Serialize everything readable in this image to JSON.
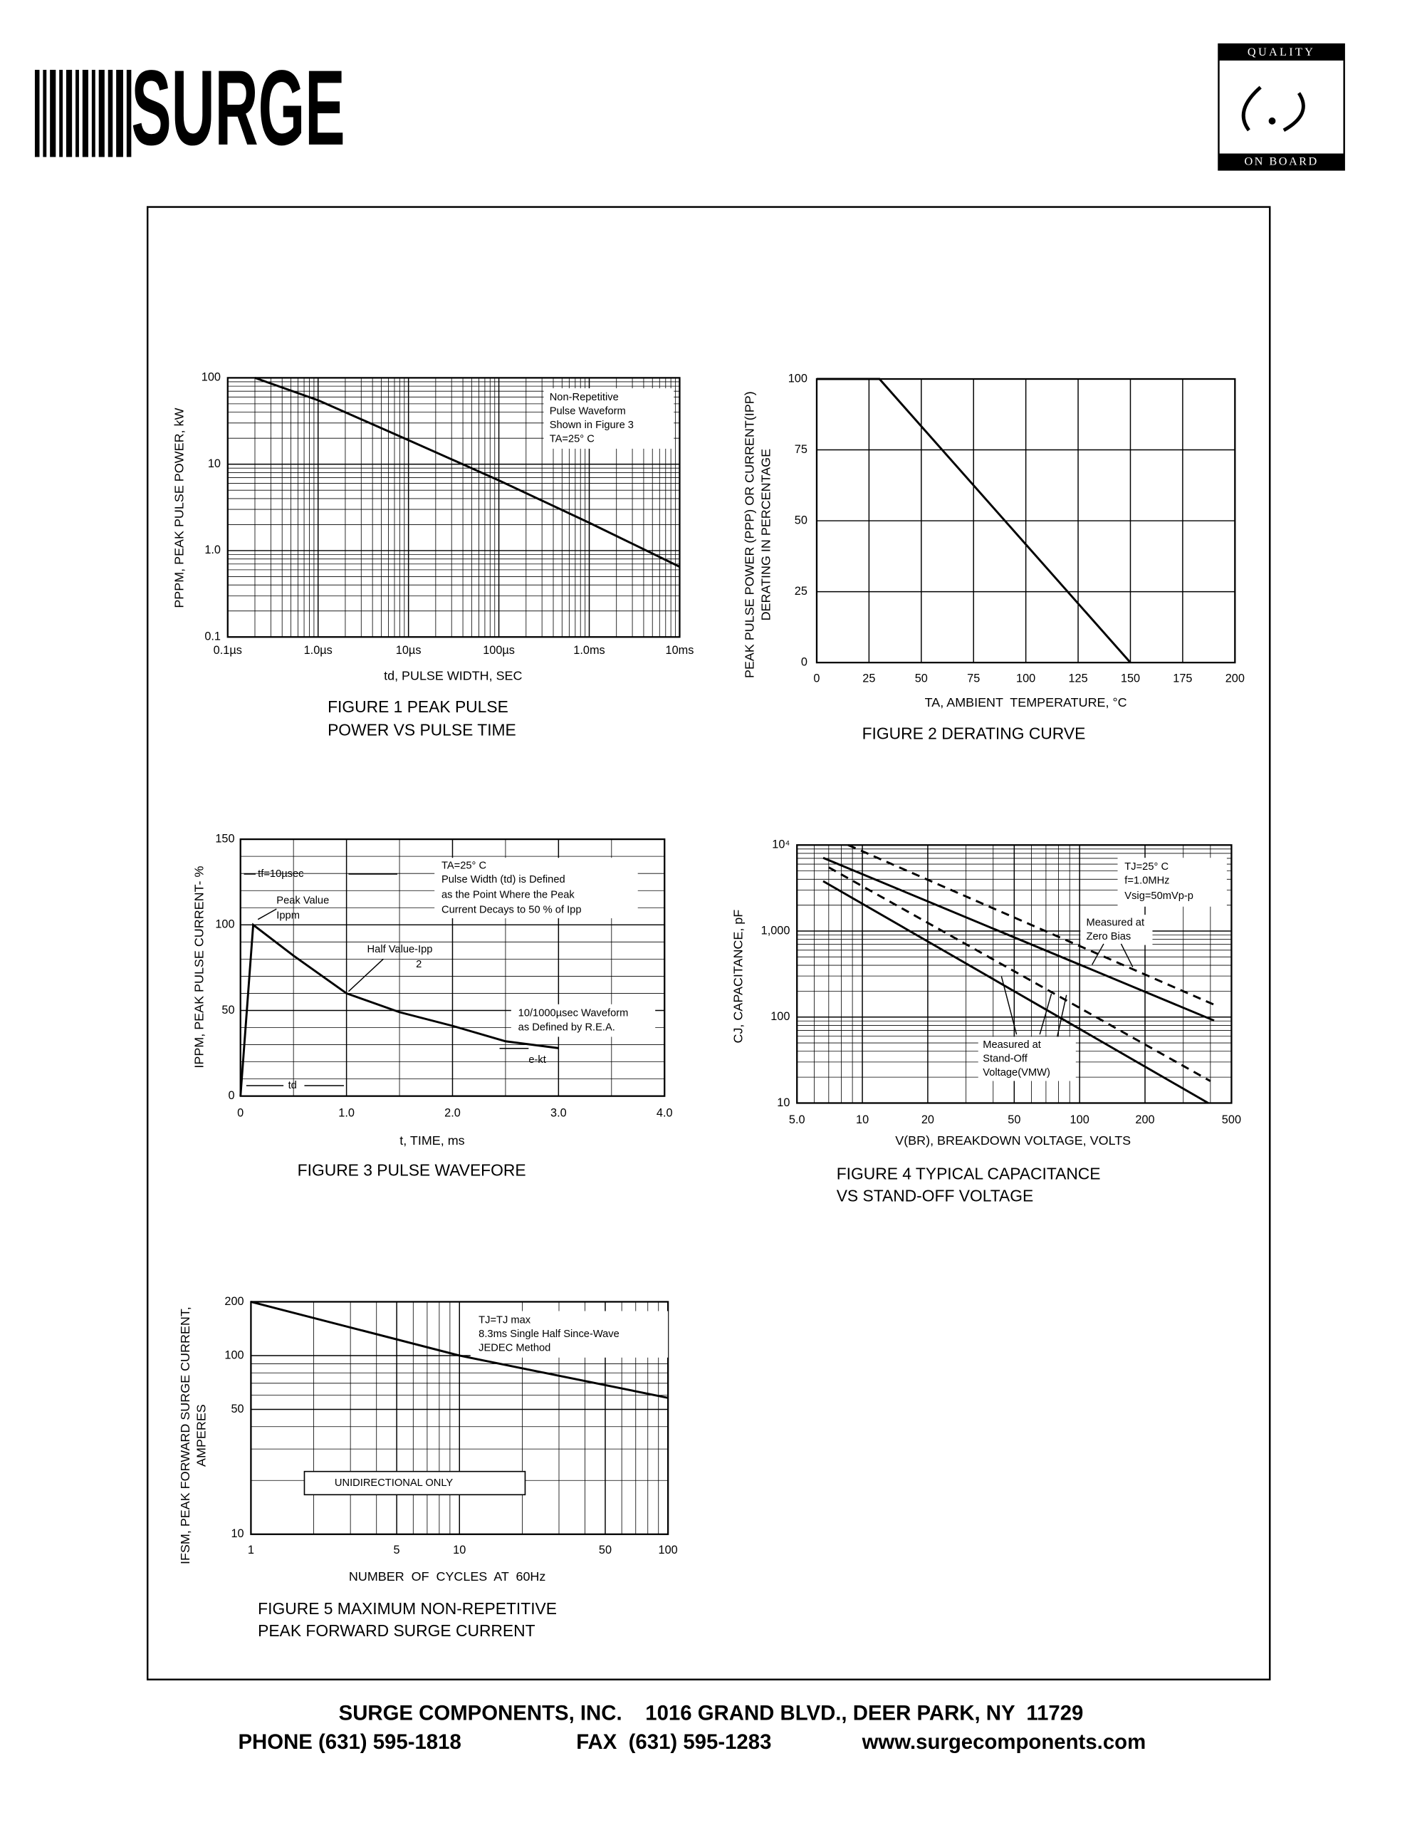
{
  "header": {
    "logo": "SURGE",
    "badge_top": "QUALITY",
    "badge_bottom": "ON BOARD"
  },
  "chart_data": [
    {
      "type": "line",
      "title": [
        "FIGURE 1 PEAK PULSE",
        "POWER VS PULSE TIME"
      ],
      "xlabel": "td, PULSE WIDTH, SEC",
      "ylabel": [
        "PPPM, PEAK PULSE POWER, kW"
      ],
      "xscale": "log",
      "yscale": "log",
      "grid": true,
      "xlim": [
        0.1,
        10000
      ],
      "xticks": [
        {
          "value": 0.1,
          "label": "0.1µs"
        },
        {
          "value": 1,
          "label": "1.0µs"
        },
        {
          "value": 10,
          "label": "10µs"
        },
        {
          "value": 100,
          "label": "100µs"
        },
        {
          "value": 1000,
          "label": "1.0ms"
        },
        {
          "value": 10000,
          "label": "10ms"
        }
      ],
      "ylim": [
        0.1,
        100
      ],
      "yticks": [
        0.1,
        {
          "value": 1,
          "label": "1.0"
        },
        10,
        100
      ],
      "annotations": [
        "Non-Repetitive",
        "Pulse Waveform",
        "Shown in Figure 3",
        "TA=25° C"
      ],
      "series": [
        {
          "color": "#000000",
          "dash": false,
          "x": [
            0.2,
            1,
            10,
            100,
            1000,
            10000
          ],
          "values": [
            100,
            55,
            19,
            6.5,
            2.1,
            0.65
          ]
        }
      ]
    },
    {
      "type": "line",
      "title": [
        "FIGURE 2 DERATING CURVE"
      ],
      "xlabel": "TA, AMBIENT  TEMPERATURE, °C",
      "ylabel": [
        "PEAK PULSE POWER (PPP) OR CURRENT(IPP)",
        "DERATING IN PERCENTAGE"
      ],
      "xscale": "linear",
      "yscale": "linear",
      "grid": true,
      "xlim": [
        0,
        200
      ],
      "xticks": [
        0,
        25,
        50,
        75,
        100,
        125,
        150,
        175,
        200
      ],
      "ylim": [
        0,
        100
      ],
      "yticks": [
        0,
        25,
        50,
        75,
        100
      ],
      "annotations": [],
      "series": [
        {
          "color": "#000000",
          "dash": false,
          "x": [
            0,
            30,
            150
          ],
          "values": [
            100,
            100,
            0
          ]
        }
      ]
    },
    {
      "type": "line",
      "title": [
        "FIGURE 3 PULSE WAVEFORE"
      ],
      "xlabel": "t, TIME, ms",
      "ylabel": [
        "IPPM, PEAK PULSE CURRENT- %"
      ],
      "xscale": "linear",
      "yscale": "linear",
      "grid": true,
      "xlim": [
        0,
        4
      ],
      "xticks": [
        0,
        {
          "value": 1,
          "label": "1.0"
        },
        {
          "value": 2,
          "label": "2.0"
        },
        {
          "value": 3,
          "label": "3.0"
        },
        {
          "value": 4,
          "label": "4.0"
        }
      ],
      "ylim": [
        0,
        150
      ],
      "yticks": [
        0,
        50,
        100,
        150
      ],
      "annotations": [
        "TA=25° C",
        "Pulse Width (td) is Defined",
        "as the Point Where the Peak",
        "Current Decays to 50 % of Ipp",
        "tf=10µsec",
        "Peak Value",
        "Ippm",
        "Half Value-Ipp",
        "2",
        "10/1000µsec Waveform",
        "as Defined by R.E.A.",
        "e-kt",
        "td"
      ],
      "series": [
        {
          "color": "#000000",
          "dash": false,
          "x": [
            0,
            0.12,
            0.5,
            1,
            1.5,
            2,
            2.5,
            3
          ],
          "values": [
            0,
            100,
            82,
            60,
            49,
            41,
            32,
            28
          ]
        }
      ]
    },
    {
      "type": "line",
      "title": [
        "FIGURE 4 TYPICAL CAPACITANCE",
        "VS STAND-OFF VOLTAGE"
      ],
      "xlabel": "V(BR), BREAKDOWN VOLTAGE, VOLTS",
      "ylabel": [
        "CJ, CAPACITANCE, pF"
      ],
      "xscale": "log",
      "yscale": "log",
      "grid": true,
      "xlim": [
        5,
        500
      ],
      "xticks": [
        {
          "value": 5,
          "label": "5.0"
        },
        10,
        20,
        50,
        100,
        200,
        500
      ],
      "ylim": [
        10,
        10000
      ],
      "yticks": [
        10,
        100,
        {
          "value": 1000,
          "label": "1,000"
        },
        {
          "value": 10000,
          "label": "10⁴"
        }
      ],
      "annotations": [
        "TJ=25° C",
        "f=1.0MHz",
        "Vsig=50mVp-p",
        "Measured at",
        "Zero Bias",
        "Measured at",
        "Stand-Off",
        "Voltage(VMW)"
      ],
      "series": [
        {
          "color": "#000000",
          "dash": false,
          "x": [
            6.6,
            416
          ],
          "values": [
            7100,
            91
          ]
        },
        {
          "color": "#000000",
          "dash": true,
          "x": [
            8.6,
            425
          ],
          "values": [
            10000,
            136
          ]
        },
        {
          "color": "#000000",
          "dash": false,
          "x": [
            6.6,
            391
          ],
          "values": [
            3800,
            10
          ]
        },
        {
          "color": "#000000",
          "dash": true,
          "x": [
            7,
            400
          ],
          "values": [
            5500,
            18
          ]
        }
      ]
    },
    {
      "type": "line",
      "title": [
        "FIGURE 5 MAXIMUM NON-REPETITIVE",
        "PEAK FORWARD SURGE CURRENT"
      ],
      "xlabel": "NUMBER  OF  CYCLES  AT  60Hz",
      "ylabel": [
        "IFSM, PEAK FORWARD SURGE CURRENT,",
        "AMPERES"
      ],
      "xscale": "log",
      "yscale": "log",
      "grid": true,
      "xlim": [
        1,
        100
      ],
      "xticks": [
        1,
        5,
        10,
        50,
        100
      ],
      "ylim": [
        10,
        200
      ],
      "yticks": [
        10,
        50,
        100,
        200
      ],
      "annotations": [
        "TJ=TJ max",
        "8.3ms Single Half Since-Wave",
        "JEDEC Method",
        "UNIDIRECTIONAL ONLY"
      ],
      "series": [
        {
          "color": "#000000",
          "dash": false,
          "x": [
            1,
            10,
            100
          ],
          "values": [
            200,
            100,
            58
          ]
        }
      ]
    }
  ],
  "footer": {
    "address": "SURGE COMPONENTS, INC.    1016 GRAND BLVD., DEER PARK, NY  11729",
    "phone": "PHONE (631) 595-1818",
    "fax": "FAX  (631) 595-1283",
    "web": "www.surgecomponents.com"
  }
}
